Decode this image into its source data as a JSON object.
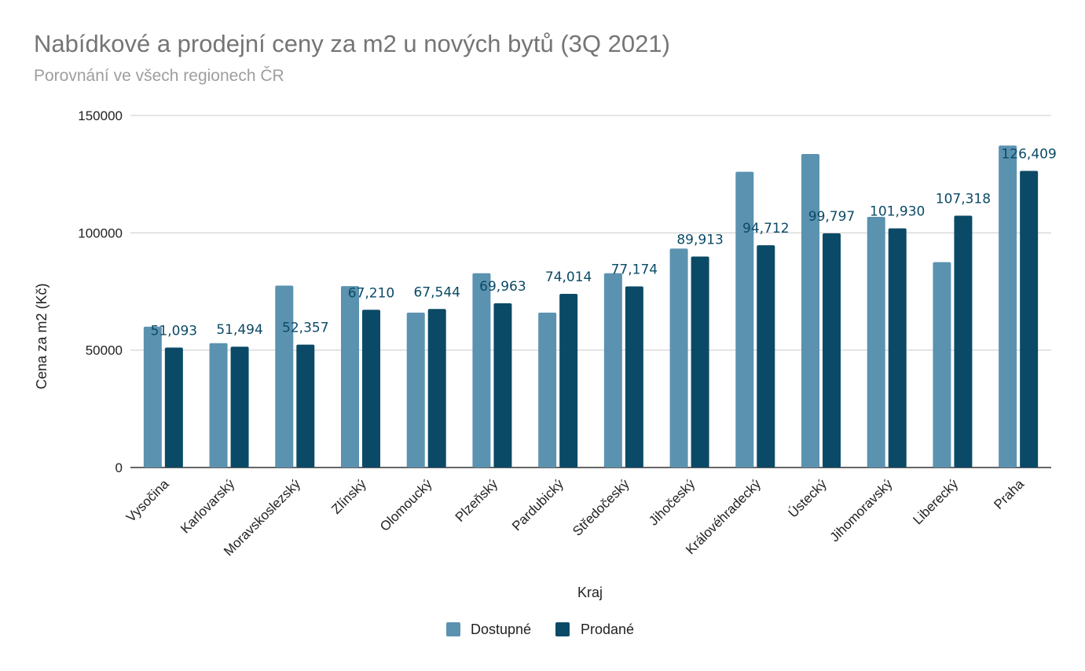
{
  "chart_data": {
    "type": "bar",
    "title": "Nabídkové a prodejní ceny za m2 u nových bytů (3Q 2021)",
    "subtitle": "Porovnání ve všech regionech ČR",
    "xlabel": "Kraj",
    "ylabel": "Cena za m2 (Kč)",
    "ylim": [
      0,
      150000
    ],
    "yticks": [
      {
        "value": 0,
        "label": "0"
      },
      {
        "value": 50000,
        "label": "50000"
      },
      {
        "value": 100000,
        "label": "100000"
      },
      {
        "value": 150000,
        "label": "150000"
      }
    ],
    "grid": true,
    "legend_position": "bottom",
    "categories": [
      "Vysočina",
      "Karlovarský",
      "Moravskoslezský",
      "Zlínský",
      "Olomoucký",
      "Plzeňský",
      "Pardubický",
      "Středočeský",
      "Jihočeský",
      "Královéhradecký",
      "Ústecký",
      "Jihomoravský",
      "Liberecký",
      "Praha"
    ],
    "series": [
      {
        "name": "Dostupné",
        "color": "#5b92b0",
        "values": [
          60000,
          53000,
          77500,
          77300,
          66000,
          82800,
          66000,
          82800,
          93300,
          126000,
          133600,
          106800,
          87500,
          137200
        ]
      },
      {
        "name": "Prodané",
        "color": "#0b4a66",
        "values": [
          51093,
          51494,
          52357,
          67210,
          67544,
          69963,
          74014,
          77174,
          89913,
          94712,
          99797,
          101930,
          107318,
          126409
        ],
        "data_labels": [
          "51,093",
          "51,494",
          "52,357",
          "67,210",
          "67,544",
          "69,963",
          "74,014",
          "77,174",
          "89,913",
          "94,712",
          "99,797",
          "101,930",
          "107,318",
          "126,409"
        ]
      }
    ]
  }
}
